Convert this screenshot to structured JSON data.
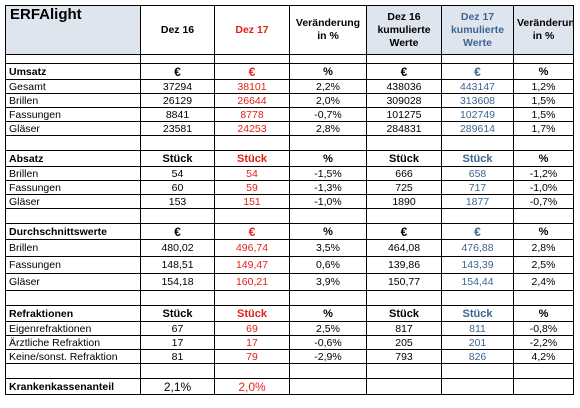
{
  "title": "ERFAlight",
  "headers": [
    "Dez 16",
    "Dez 17",
    "Veränderung\nin %",
    "Dez 16\nkumulierte\nWerte",
    "Dez 17\nkumulierte\nWerte",
    "Veränderung\nin %"
  ],
  "umsatz": {
    "label": "Umsatz",
    "units": [
      "€",
      "€",
      "%",
      "€",
      "€",
      "%"
    ],
    "rows": [
      {
        "label": "Gesamt",
        "v": [
          "37294",
          "38101",
          "2,2%",
          "438036",
          "443147",
          "1,2%"
        ]
      },
      {
        "label": "Brillen",
        "v": [
          "26129",
          "26644",
          "2,0%",
          "309028",
          "313608",
          "1,5%"
        ]
      },
      {
        "label": "Fassungen",
        "v": [
          "8841",
          "8778",
          "-0,7%",
          "101275",
          "102749",
          "1,5%"
        ]
      },
      {
        "label": "Gläser",
        "v": [
          "23581",
          "24253",
          "2,8%",
          "284831",
          "289614",
          "1,7%"
        ]
      }
    ]
  },
  "absatz": {
    "label": "Absatz",
    "units": [
      "Stück",
      "Stück",
      "%",
      "Stück",
      "Stück",
      "%"
    ],
    "rows": [
      {
        "label": "Brillen",
        "v": [
          "54",
          "54",
          "-1,5%",
          "666",
          "658",
          "-1,2%"
        ]
      },
      {
        "label": "Fassungen",
        "v": [
          "60",
          "59",
          "-1,3%",
          "725",
          "717",
          "-1,0%"
        ]
      },
      {
        "label": "Gläser",
        "v": [
          "153",
          "151",
          "-1,0%",
          "1890",
          "1877",
          "-0,7%"
        ]
      }
    ]
  },
  "durchschnitt": {
    "label": "Durchschnittswerte",
    "units": [
      "€",
      "€",
      "%",
      "€",
      "€",
      "%"
    ],
    "rows": [
      {
        "label": "Brillen",
        "v": [
          "480,02",
          "496,74",
          "3,5%",
          "464,08",
          "476,88",
          "2,8%"
        ]
      },
      {
        "label": "Fassungen",
        "v": [
          "148,51",
          "149,47",
          "0,6%",
          "139,86",
          "143,39",
          "2,5%"
        ]
      },
      {
        "label": "Gläser",
        "v": [
          "154,18",
          "160,21",
          "3,9%",
          "150,77",
          "154,44",
          "2,4%"
        ]
      }
    ]
  },
  "refraktionen": {
    "label": "Refraktionen",
    "units": [
      "Stück",
      "Stück",
      "%",
      "Stück",
      "Stück",
      "%"
    ],
    "rows": [
      {
        "label": "Eigenrefraktionen",
        "v": [
          "67",
          "69",
          "2,5%",
          "817",
          "811",
          "-0,8%"
        ]
      },
      {
        "label": "Ärztliche Refraktion",
        "v": [
          "17",
          "17",
          "-0,6%",
          "205",
          "201",
          "-2,2%"
        ]
      },
      {
        "label": "Keine/sonst. Refraktion",
        "v": [
          "81",
          "79",
          "-2,9%",
          "793",
          "826",
          "4,2%"
        ]
      }
    ]
  },
  "krankenkasse": {
    "label": "Krankenkassenanteil",
    "v": [
      "2,1%",
      "2,0%",
      "",
      "",
      "",
      ""
    ]
  },
  "colors": {
    "red": "#e32119",
    "blue": "#3d6592",
    "header_bg": "#dfe5ee"
  }
}
